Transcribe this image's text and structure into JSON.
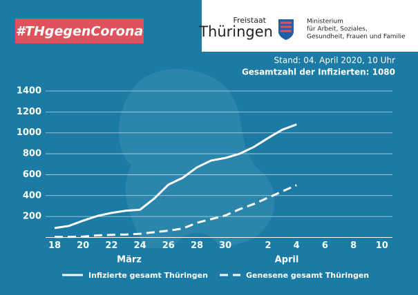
{
  "header": {
    "hashtag": "#THgegenCorona",
    "logo_small": "Freistaat",
    "logo_big": "Thüringen",
    "ministry": [
      "Ministerium",
      "für Arbeit, Soziales,",
      "Gesundheit, Frauen und Familie"
    ]
  },
  "chart_data": {
    "type": "line",
    "subtitle": "Stand: 04. April 2020, 10 Uhr",
    "annotation": "Gesamtzahl der Infizierten: 1080",
    "month_labels": [
      "März",
      "April"
    ],
    "categories": [
      "18",
      null,
      "20",
      null,
      "22",
      null,
      "24",
      null,
      "26",
      null,
      "28",
      null,
      "30",
      null,
      null,
      "2",
      null,
      "4",
      null,
      "6",
      null,
      "8",
      null,
      "10"
    ],
    "ylim": [
      0,
      1400
    ],
    "yticks": [
      200,
      400,
      600,
      800,
      1000,
      1200,
      1400
    ],
    "grid": true,
    "series": [
      {
        "name": "Infizierte gesamt Thüringen",
        "color": "#ffffff",
        "dash": false,
        "values": [
          90,
          110,
          160,
          205,
          235,
          255,
          265,
          372,
          505,
          570,
          670,
          735,
          760,
          800,
          865,
          950,
          1030,
          1080,
          null,
          null,
          null,
          null,
          null,
          null
        ]
      },
      {
        "name": "Genesene gesamt Thüringen",
        "color": "#ffffff",
        "dash": true,
        "values": [
          5,
          5,
          8,
          20,
          25,
          28,
          35,
          50,
          65,
          85,
          140,
          175,
          210,
          270,
          320,
          380,
          440,
          500,
          null,
          null,
          null,
          null,
          null,
          null
        ]
      }
    ]
  }
}
